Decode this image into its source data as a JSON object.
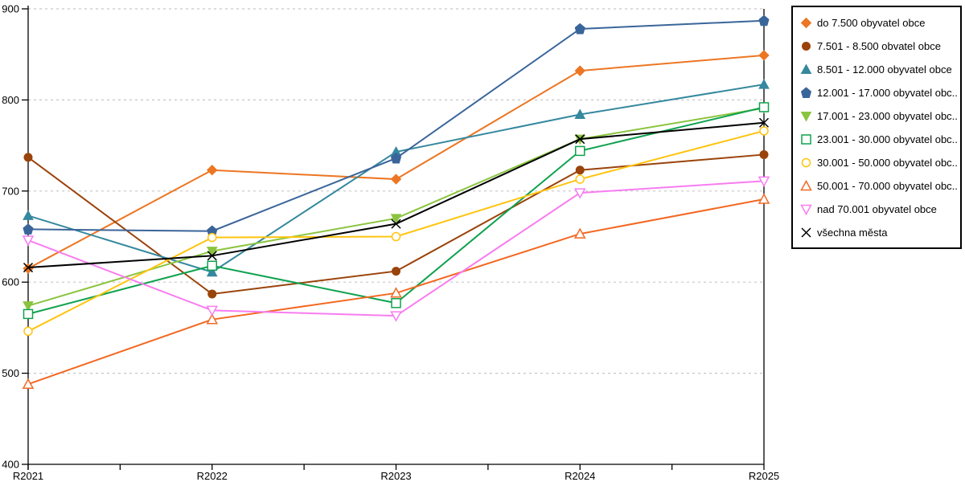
{
  "chart_data": {
    "type": "line",
    "x": [
      "R2021",
      "R2022",
      "R2023",
      "R2024",
      "R2025"
    ],
    "ylim": [
      400,
      900
    ],
    "ytick_step": 100,
    "ytick_labels": [
      "400",
      "500",
      "600",
      "700",
      "800",
      "900"
    ],
    "grid": "horizontal-dashed",
    "legend_position": "right",
    "series": [
      {
        "name": "do 7.500 obyvatel obce",
        "color": "#EC7623",
        "marker": "diamond",
        "fill": true,
        "values": [
          615,
          723,
          713,
          832,
          849
        ]
      },
      {
        "name": "7.501 - 8.500 obvatel obce",
        "color": "#9A430A",
        "marker": "circle",
        "fill": true,
        "values": [
          737,
          587,
          612,
          723,
          740
        ]
      },
      {
        "name": "8.501 - 12.000 obyvatel obce",
        "color": "#35889E",
        "marker": "triangle-up",
        "fill": true,
        "values": [
          673,
          611,
          743,
          784,
          817
        ]
      },
      {
        "name": "12.001 - 17.000 obyvatel obc...",
        "color": "#3A659A",
        "marker": "pentagon",
        "fill": true,
        "values": [
          658,
          656,
          736,
          878,
          887
        ]
      },
      {
        "name": "17.001 - 23.000 obyvatel obc...",
        "color": "#8AC43F",
        "marker": "triangle-down",
        "fill": true,
        "values": [
          574,
          634,
          670,
          757,
          791
        ]
      },
      {
        "name": "23.001 - 30.000 obyvatel obc...",
        "color": "#0FA24F",
        "marker": "square",
        "fill": false,
        "values": [
          565,
          618,
          577,
          744,
          792
        ]
      },
      {
        "name": "30.001 - 50.000 obyvatel obc...",
        "color": "#FFC40E",
        "marker": "circle",
        "fill": false,
        "values": [
          546,
          649,
          650,
          713,
          766
        ]
      },
      {
        "name": "50.001 - 70.000 obyvatel obc...",
        "color": "#F26822",
        "marker": "triangle-up",
        "fill": false,
        "values": [
          488,
          559,
          588,
          653,
          691
        ]
      },
      {
        "name": "nad 70.001 obyvatel obce",
        "color": "#F87CF0",
        "marker": "triangle-down",
        "fill": false,
        "values": [
          646,
          569,
          563,
          698,
          711
        ]
      },
      {
        "name": "všechna města",
        "color": "#000000",
        "marker": "x",
        "fill": false,
        "values": [
          616,
          629,
          664,
          757,
          775
        ]
      }
    ]
  },
  "colors": {
    "gridline": "#C6C6C6",
    "axis": "#000000",
    "background": "#FFFFFF"
  }
}
